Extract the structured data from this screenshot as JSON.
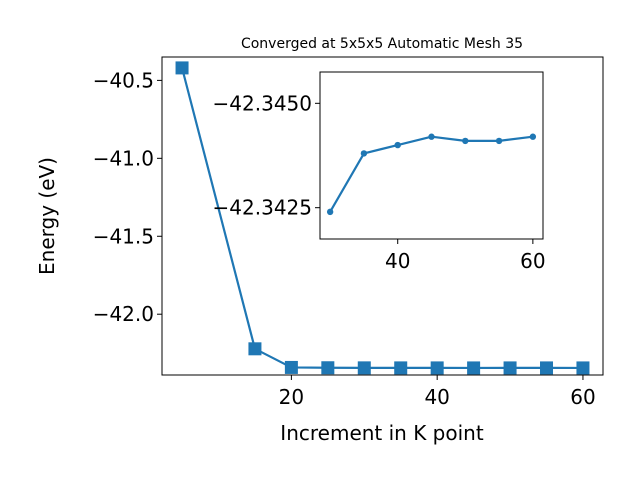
{
  "chart_data": [
    {
      "type": "line",
      "title": "Converged at 5x5x5 Automatic Mesh 35",
      "xlabel": "Increment in K point",
      "ylabel": "Energy (eV)",
      "xlim": [
        2.25,
        62.75
      ],
      "ylim": [
        -42.39,
        -40.35
      ],
      "x_ticks": [
        20,
        40,
        60
      ],
      "y_ticks": [
        -40.5,
        -41.0,
        -41.5,
        -42.0
      ],
      "x_tick_labels": [
        "20",
        "40",
        "60"
      ],
      "y_tick_labels": [
        "−40.5",
        "−41.0",
        "−41.5",
        "−42.0"
      ],
      "grid": false,
      "marker": "square",
      "color": "#1f77b4",
      "series": [
        {
          "x": [
            5,
            15,
            20,
            25,
            30,
            35,
            40,
            45,
            50,
            55,
            60
          ],
          "y": [
            -40.42,
            -42.222,
            -42.3415,
            -42.3435,
            -42.3442,
            -42.3444,
            -42.3445,
            -42.3446,
            -42.3445,
            -42.3445,
            -42.3446
          ]
        }
      ]
    },
    {
      "type": "line",
      "title": "",
      "xlim": [
        28.5,
        61.5
      ],
      "ylim": [
        -42.34175,
        -42.34575
      ],
      "x_ticks": [
        40,
        60
      ],
      "y_ticks": [
        -42.345,
        -42.3425
      ],
      "x_tick_labels": [
        "40",
        "60"
      ],
      "y_tick_labels": [
        "−42.3450",
        "−42.3425"
      ],
      "grid": false,
      "marker": "circle",
      "color": "#1f77b4",
      "series": [
        {
          "x": [
            30,
            35,
            40,
            45,
            50,
            55,
            60
          ],
          "y": [
            -42.3424,
            -42.3438,
            -42.344,
            -42.3442,
            -42.3441,
            -42.3441,
            -42.3442
          ]
        }
      ]
    }
  ]
}
